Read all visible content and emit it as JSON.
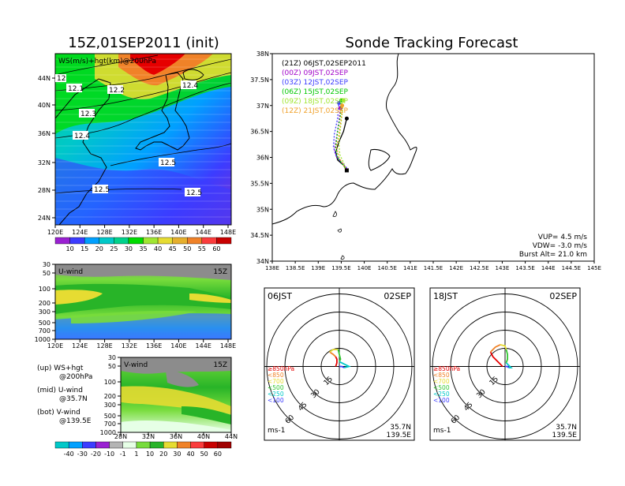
{
  "left_title": "15Z,01SEP2011 (init)",
  "main_title": "Sonde Tracking Forecast",
  "upper_map": {
    "label": "WS(m/s)+hgt(km)@200hPa",
    "lat_ticks": [
      "44N",
      "40N",
      "36N",
      "32N",
      "28N",
      "24N"
    ],
    "lon_ticks": [
      "120E",
      "124E",
      "128E",
      "132E",
      "136E",
      "140E",
      "144E",
      "148E"
    ],
    "contour_labels": [
      "12",
      "12.1",
      "12.2",
      "12.3",
      "12.4",
      "12.4",
      "12.5",
      "12.5",
      "12.5"
    ],
    "colorbar_ticks": [
      "10",
      "15",
      "20",
      "25",
      "30",
      "35",
      "40",
      "45",
      "50",
      "55",
      "60"
    ],
    "colorbar_colors": [
      "#9a20d2",
      "#3c3cff",
      "#00a0ff",
      "#00c8c8",
      "#00d28c",
      "#00dc00",
      "#a0e632",
      "#e6dc32",
      "#e6af2d",
      "#f08228",
      "#fa3c3c",
      "#c80000"
    ]
  },
  "u_wind": {
    "label": "U-wind",
    "time": "15Z",
    "y_ticks": [
      "30",
      "50",
      "100",
      "200",
      "300",
      "500",
      "700",
      "1000"
    ],
    "x_ticks": [
      "120E",
      "124E",
      "128E",
      "132E",
      "136E",
      "140E",
      "144E",
      "148E"
    ]
  },
  "v_wind": {
    "label": "V-wind",
    "time": "15Z",
    "y_ticks": [
      "30",
      "50",
      "100",
      "200",
      "300",
      "500",
      "700",
      "1000"
    ],
    "x_ticks": [
      "28N",
      "32N",
      "36N",
      "40N",
      "44N"
    ],
    "colorbar_ticks": [
      "-40",
      "-30",
      "-20",
      "-10",
      "-1",
      "1",
      "10",
      "20",
      "30",
      "40",
      "50",
      "60"
    ],
    "colorbar_colors": [
      "#00c8c8",
      "#00a0ff",
      "#3c3cff",
      "#9a20d2",
      "#b4b4b4",
      "#e6ffe6",
      "#78dc3c",
      "#28b428",
      "#e6dc32",
      "#f08228",
      "#fa3c3c",
      "#c80000",
      "#a00000"
    ]
  },
  "notes": [
    {
      "a": "(up) WS+hgt",
      "b": "@200hPa"
    },
    {
      "a": "(mid) U-wind",
      "b": "@35.7N"
    },
    {
      "a": "(bot) V-wind",
      "b": "@139.5E"
    }
  ],
  "tracking": {
    "legend": [
      {
        "text": "(21Z)  06JST,02SEP2011",
        "color": "#000000"
      },
      {
        "text": "(00Z)  09JST,02SEP",
        "color": "#a000c8"
      },
      {
        "text": "(03Z)  12JST,02SEP",
        "color": "#3c3cff"
      },
      {
        "text": "(06Z)  15JST,02SEP",
        "color": "#00c800"
      },
      {
        "text": "(09Z)  18JST,02SEP",
        "color": "#a0e632"
      },
      {
        "text": "(12Z)  21JST,02SEP",
        "color": "#f0a028"
      }
    ],
    "lat_ticks": [
      "38N",
      "37.5N",
      "37N",
      "36.5N",
      "36N",
      "35.5N",
      "35N",
      "34.5N",
      "34N"
    ],
    "lon_ticks": [
      "138E",
      "138.5E",
      "139E",
      "139.5E",
      "140E",
      "140.5E",
      "141E",
      "141.5E",
      "142E",
      "142.5E",
      "143E",
      "143.5E",
      "144E",
      "144.5E",
      "145E"
    ],
    "info": [
      "VUP= 4.5 m/s",
      "VDW= -3.0 m/s",
      "Burst Alt= 21.0 km"
    ]
  },
  "chart_data": [
    {
      "type": "line",
      "name": "sonde-tracks",
      "xlim": [
        138,
        145
      ],
      "ylim": [
        34,
        38
      ],
      "series": [
        {
          "name": "(21Z)  06JST,02SEP2011",
          "color": "#000000",
          "x": [
            139.62,
            139.55,
            139.42,
            139.38,
            139.45,
            139.55,
            139.62
          ],
          "y": [
            35.75,
            35.85,
            35.95,
            36.1,
            36.3,
            36.5,
            36.75
          ]
        },
        {
          "name": "(00Z)  09JST,02SEP",
          "color": "#a000c8",
          "x": [
            139.62,
            139.52,
            139.4,
            139.35,
            139.4,
            139.45,
            139.48
          ],
          "y": [
            35.78,
            35.9,
            36.0,
            36.15,
            36.4,
            36.7,
            36.95
          ]
        },
        {
          "name": "(03Z)  12JST,02SEP",
          "color": "#3c3cff",
          "x": [
            139.62,
            139.5,
            139.38,
            139.33,
            139.35,
            139.42,
            139.45
          ],
          "y": [
            35.8,
            35.9,
            36.05,
            36.2,
            36.45,
            36.75,
            37.05
          ]
        },
        {
          "name": "(06Z)  15JST,02SEP",
          "color": "#00c800",
          "x": [
            139.62,
            139.52,
            139.42,
            139.38,
            139.42,
            139.48,
            139.5
          ],
          "y": [
            35.75,
            35.88,
            36.0,
            36.2,
            36.5,
            36.8,
            37.1
          ]
        },
        {
          "name": "(09Z)  18JST,02SEP",
          "color": "#a0e632",
          "x": [
            139.62,
            139.55,
            139.47,
            139.45,
            139.48,
            139.52,
            139.55
          ],
          "y": [
            35.75,
            35.9,
            36.05,
            36.25,
            36.55,
            36.85,
            37.1
          ]
        },
        {
          "name": "(12Z)  21JST,02SEP",
          "color": "#f0a028",
          "x": [
            139.62,
            139.55,
            139.45,
            139.4,
            139.45,
            139.5,
            139.52
          ],
          "y": [
            35.72,
            35.85,
            36.0,
            36.2,
            36.45,
            36.75,
            37.0
          ]
        }
      ]
    },
    {
      "type": "line",
      "name": "hodograph-06JST",
      "title_left": "06JST",
      "title_right": "02SEP",
      "loc": [
        "35.7N",
        "139.5E"
      ],
      "units": "ms-1",
      "ring_labels": [
        "15",
        "30",
        "45",
        "60"
      ],
      "legend": [
        {
          "text": "≥850hPa",
          "color": "#e60000"
        },
        {
          "text": "<850",
          "color": "#f08228"
        },
        {
          "text": "<700",
          "color": "#e6dc32"
        },
        {
          "text": "<500",
          "color": "#32c832"
        },
        {
          "text": "<250",
          "color": "#00c8c8"
        },
        {
          "text": "<100",
          "color": "#3c3cff"
        }
      ],
      "series": [
        {
          "name": "≥850hPa",
          "color": "#e60000",
          "u": [
            -3,
            -2,
            -2,
            -3
          ],
          "v": [
            0,
            3,
            6,
            8
          ]
        },
        {
          "name": "<850",
          "color": "#f08228",
          "u": [
            -3,
            -5,
            -8
          ],
          "v": [
            8,
            10,
            12
          ]
        },
        {
          "name": "<700",
          "color": "#e6dc32",
          "u": [
            -8,
            -5,
            -1
          ],
          "v": [
            12,
            14,
            14
          ]
        },
        {
          "name": "<500",
          "color": "#32c832",
          "u": [
            -1,
            0,
            1,
            0
          ],
          "v": [
            14,
            10,
            6,
            4
          ]
        },
        {
          "name": "<250",
          "color": "#00c8c8",
          "u": [
            0,
            4,
            8,
            4
          ],
          "v": [
            4,
            2,
            0,
            -1
          ]
        },
        {
          "name": "<100",
          "color": "#3c3cff",
          "u": [
            4,
            2,
            0
          ],
          "v": [
            -1,
            0,
            0
          ]
        }
      ]
    },
    {
      "type": "line",
      "name": "hodograph-18JST",
      "title_left": "18JST",
      "title_right": "02SEP",
      "loc": [
        "35.7N",
        "139.5E"
      ],
      "units": "ms-1",
      "ring_labels": [
        "15",
        "30",
        "45",
        "60"
      ],
      "legend": [
        {
          "text": "≥850hPa",
          "color": "#e60000"
        },
        {
          "text": "<850",
          "color": "#f08228"
        },
        {
          "text": "<700",
          "color": "#e6dc32"
        },
        {
          "text": "<500",
          "color": "#32c832"
        },
        {
          "text": "<250",
          "color": "#00c8c8"
        },
        {
          "text": "<100",
          "color": "#3c3cff"
        }
      ],
      "series": [
        {
          "name": "≥850hPa",
          "color": "#e60000",
          "u": [
            -2,
            -6,
            -10,
            -12
          ],
          "v": [
            0,
            4,
            8,
            12
          ]
        },
        {
          "name": "<850",
          "color": "#f08228",
          "u": [
            -12,
            -8,
            -4
          ],
          "v": [
            12,
            16,
            18
          ]
        },
        {
          "name": "<700",
          "color": "#e6dc32",
          "u": [
            -4,
            0,
            1
          ],
          "v": [
            18,
            17,
            14
          ]
        },
        {
          "name": "<500",
          "color": "#32c832",
          "u": [
            1,
            2,
            2,
            1
          ],
          "v": [
            14,
            10,
            6,
            3
          ]
        },
        {
          "name": "<250",
          "color": "#00c8c8",
          "u": [
            1,
            3,
            5,
            3
          ],
          "v": [
            3,
            1,
            -1,
            -1
          ]
        },
        {
          "name": "<100",
          "color": "#3c3cff",
          "u": [
            3,
            2,
            0
          ],
          "v": [
            -1,
            0,
            0
          ]
        }
      ]
    }
  ]
}
